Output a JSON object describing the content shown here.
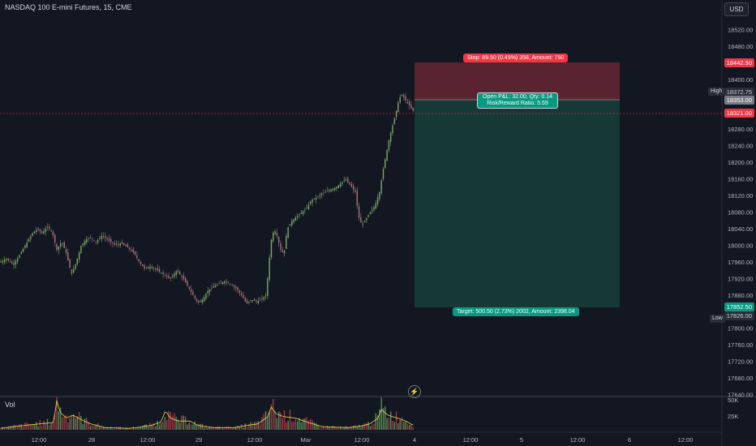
{
  "header": {
    "symbol": "NASDAQ 100 E-mini Futures, 15, CME",
    "currency_button": "USD"
  },
  "volume_pane": {
    "title": "Vol",
    "scale_labels": [
      "50K",
      "25K"
    ]
  },
  "price_scale": {
    "labels": [
      "18520.00",
      "18480.00",
      "18400.00",
      "18360.00",
      "18280.00",
      "18240.00",
      "18200.00",
      "18160.00",
      "18120.00",
      "18080.00",
      "18040.00",
      "18000.00",
      "17960.00",
      "17920.00",
      "17880.00",
      "17840.00",
      "17800.00",
      "17760.00",
      "17720.00",
      "17680.00",
      "17640.00"
    ],
    "tags": {
      "stop": "18442.50",
      "high": "18372.75",
      "entry": "18353.00",
      "last": "18321.00",
      "target": "17852.50",
      "low": "17826.00"
    },
    "side_labels": {
      "high": "High",
      "low": "Low"
    }
  },
  "time_axis": {
    "labels": [
      "12:00",
      "28",
      "12:00",
      "29",
      "12:00",
      "Mar",
      "12:00",
      "4",
      "12:00",
      "5",
      "12:00",
      "6",
      "12:00"
    ]
  },
  "position_tool": {
    "stop_label": "Stop: 89.50 (0.49%) 358, Amount: 750",
    "target_label": "Target: 500.50 (2.73%) 2002, Amount: 2398.04",
    "pnl_line1": "Open P&L: 32.00, Qty: 0.14",
    "pnl_line2": "Risk/Reward Ratio: 5.59"
  },
  "chart_data": {
    "type": "candlestick",
    "title": "NASDAQ 100 E-mini Futures, 15, CME",
    "y_range": [
      17640,
      18560
    ],
    "price_path": [
      [
        0,
        17960
      ],
      [
        8,
        17968
      ],
      [
        16,
        17955
      ],
      [
        22,
        17970
      ],
      [
        28,
        17990
      ],
      [
        34,
        18010
      ],
      [
        40,
        18030
      ],
      [
        46,
        18040
      ],
      [
        52,
        18030
      ],
      [
        58,
        18045
      ],
      [
        64,
        18035
      ],
      [
        70,
        17990
      ],
      [
        76,
        18010
      ],
      [
        82,
        17980
      ],
      [
        88,
        17930
      ],
      [
        94,
        17960
      ],
      [
        100,
        18000
      ],
      [
        106,
        18015
      ],
      [
        112,
        18020
      ],
      [
        118,
        18008
      ],
      [
        126,
        18025
      ],
      [
        134,
        18012
      ],
      [
        142,
        18002
      ],
      [
        150,
        18005
      ],
      [
        158,
        17995
      ],
      [
        166,
        17980
      ],
      [
        172,
        17960
      ],
      [
        178,
        17945
      ],
      [
        186,
        17950
      ],
      [
        194,
        17940
      ],
      [
        202,
        17930
      ],
      [
        210,
        17920
      ],
      [
        218,
        17940
      ],
      [
        226,
        17920
      ],
      [
        232,
        17900
      ],
      [
        238,
        17880
      ],
      [
        244,
        17862
      ],
      [
        250,
        17870
      ],
      [
        256,
        17890
      ],
      [
        262,
        17900
      ],
      [
        270,
        17908
      ],
      [
        278,
        17915
      ],
      [
        286,
        17905
      ],
      [
        292,
        17895
      ],
      [
        298,
        17880
      ],
      [
        304,
        17860
      ],
      [
        310,
        17870
      ],
      [
        316,
        17865
      ],
      [
        322,
        17870
      ],
      [
        328,
        17880
      ],
      [
        334,
        18010
      ],
      [
        338,
        18040
      ],
      [
        342,
        18020
      ],
      [
        346,
        17990
      ],
      [
        350,
        17980
      ],
      [
        354,
        18040
      ],
      [
        360,
        18060
      ],
      [
        366,
        18070
      ],
      [
        372,
        18080
      ],
      [
        378,
        18090
      ],
      [
        384,
        18110
      ],
      [
        390,
        18115
      ],
      [
        396,
        18125
      ],
      [
        402,
        18130
      ],
      [
        408,
        18135
      ],
      [
        414,
        18140
      ],
      [
        420,
        18150
      ],
      [
        426,
        18160
      ],
      [
        432,
        18145
      ],
      [
        438,
        18130
      ],
      [
        442,
        18070
      ],
      [
        446,
        18050
      ],
      [
        450,
        18060
      ],
      [
        456,
        18080
      ],
      [
        462,
        18095
      ],
      [
        468,
        18130
      ],
      [
        472,
        18180
      ],
      [
        476,
        18220
      ],
      [
        480,
        18260
      ],
      [
        484,
        18290
      ],
      [
        488,
        18320
      ],
      [
        492,
        18355
      ],
      [
        496,
        18365
      ],
      [
        500,
        18350
      ],
      [
        504,
        18340
      ],
      [
        508,
        18328
      ],
      [
        511,
        18321
      ]
    ],
    "volume_profile": [
      [
        0,
        2
      ],
      [
        30,
        6
      ],
      [
        66,
        10
      ],
      [
        70,
        40
      ],
      [
        74,
        24
      ],
      [
        82,
        16
      ],
      [
        90,
        20
      ],
      [
        100,
        14
      ],
      [
        112,
        8
      ],
      [
        130,
        3
      ],
      [
        160,
        2
      ],
      [
        174,
        4
      ],
      [
        186,
        6
      ],
      [
        198,
        10
      ],
      [
        204,
        26
      ],
      [
        210,
        16
      ],
      [
        220,
        12
      ],
      [
        234,
        12
      ],
      [
        244,
        6
      ],
      [
        262,
        3
      ],
      [
        290,
        3
      ],
      [
        304,
        6
      ],
      [
        318,
        8
      ],
      [
        330,
        18
      ],
      [
        334,
        32
      ],
      [
        340,
        22
      ],
      [
        350,
        18
      ],
      [
        364,
        16
      ],
      [
        380,
        10
      ],
      [
        398,
        4
      ],
      [
        430,
        3
      ],
      [
        444,
        5
      ],
      [
        456,
        8
      ],
      [
        466,
        16
      ],
      [
        470,
        28
      ],
      [
        478,
        20
      ],
      [
        490,
        16
      ],
      [
        500,
        12
      ],
      [
        510,
        6
      ]
    ],
    "position": {
      "direction": "short",
      "entry": 18353.0,
      "stop": 18442.5,
      "target": 17852.5,
      "last": 18321.0
    }
  }
}
